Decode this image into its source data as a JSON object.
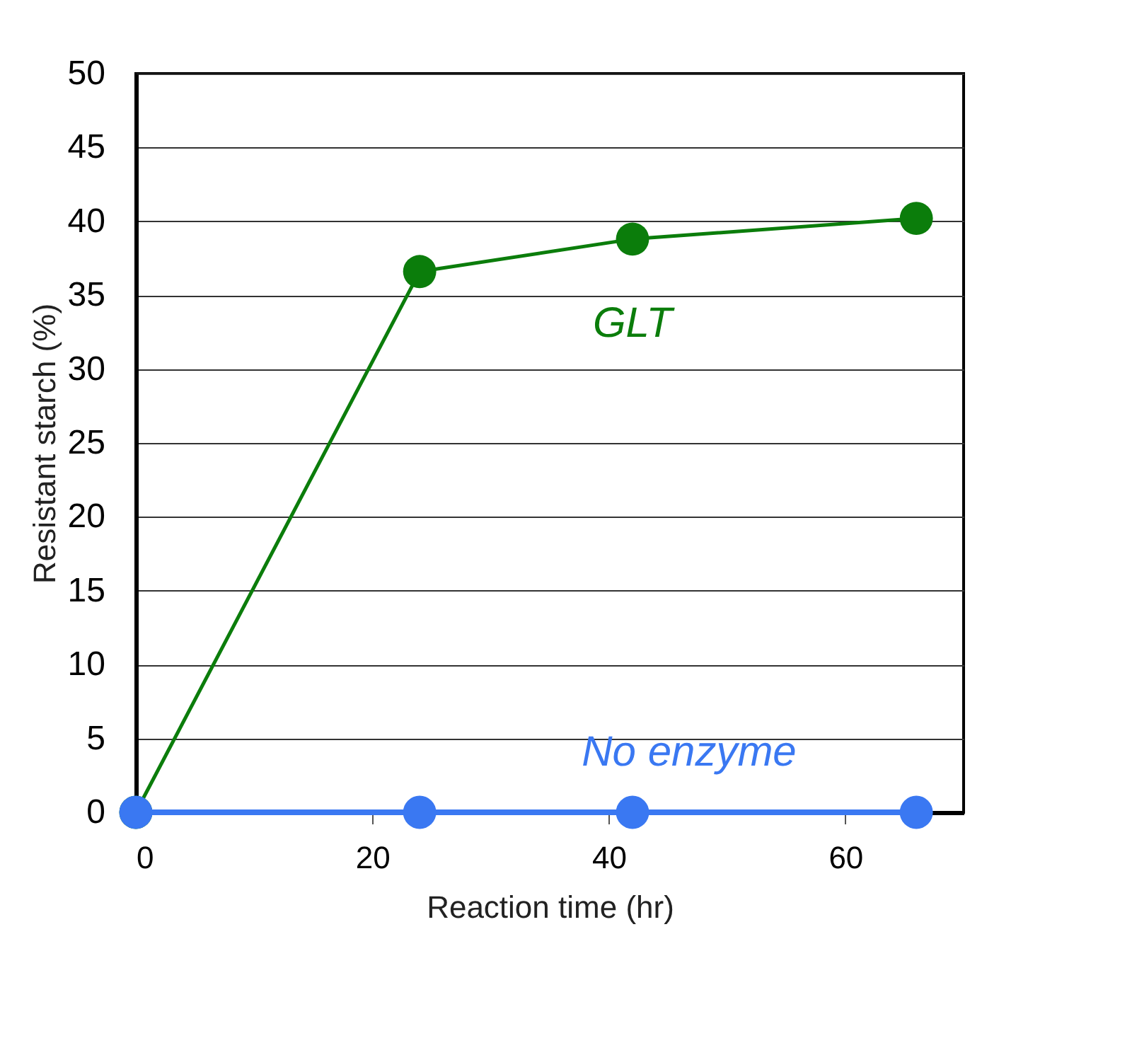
{
  "chart_data": {
    "type": "line",
    "xlabel": "Reaction time (hr)",
    "ylabel": "Resistant starch (%)",
    "x": [
      0,
      24,
      42,
      66
    ],
    "series": [
      {
        "name": "GLT",
        "color": "#0b7d0b",
        "values": [
          0,
          36.6,
          38.8,
          40.2
        ]
      },
      {
        "name": "No enzyme",
        "color": "#3a78f2",
        "values": [
          0,
          0,
          0,
          0
        ]
      }
    ],
    "xlim": [
      0,
      70
    ],
    "xticks": [
      0,
      20,
      40,
      60
    ],
    "ylim": [
      0,
      50
    ],
    "yticks": [
      0,
      5,
      10,
      15,
      20,
      25,
      30,
      35,
      40,
      45,
      50
    ],
    "grid": "y",
    "legend": false,
    "marker": "circle",
    "line_style": "solid"
  }
}
